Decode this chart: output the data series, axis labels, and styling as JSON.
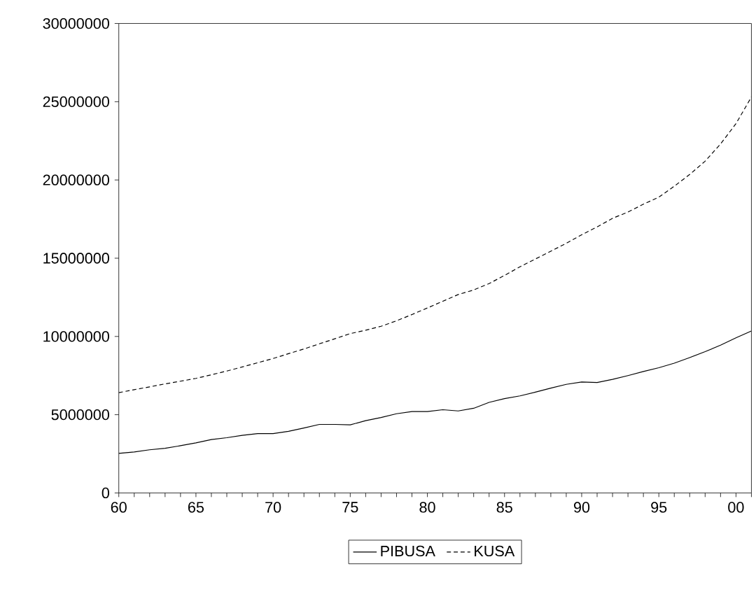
{
  "chart_data": {
    "type": "line",
    "x": [
      1960,
      1961,
      1962,
      1963,
      1964,
      1965,
      1966,
      1967,
      1968,
      1969,
      1970,
      1971,
      1972,
      1973,
      1974,
      1975,
      1976,
      1977,
      1978,
      1979,
      1980,
      1981,
      1982,
      1983,
      1984,
      1985,
      1986,
      1987,
      1988,
      1989,
      1990,
      1991,
      1992,
      1993,
      1994,
      1995,
      1996,
      1997,
      1998,
      1999,
      2000,
      2001
    ],
    "series": [
      {
        "name": "PIBUSA",
        "color": "#000000",
        "line_style": "solid",
        "values": [
          2530000,
          2620000,
          2760000,
          2850000,
          3020000,
          3200000,
          3410000,
          3530000,
          3680000,
          3790000,
          3790000,
          3940000,
          4150000,
          4380000,
          4380000,
          4350000,
          4620000,
          4820000,
          5060000,
          5200000,
          5200000,
          5320000,
          5240000,
          5410000,
          5790000,
          6030000,
          6200000,
          6440000,
          6700000,
          6940000,
          7090000,
          7060000,
          7260000,
          7500000,
          7760000,
          8000000,
          8290000,
          8650000,
          9030000,
          9440000,
          9910000,
          10350000
        ]
      },
      {
        "name": "KUSA",
        "color": "#000000",
        "line_style": "dashed",
        "values": [
          6410000,
          6600000,
          6780000,
          6970000,
          7140000,
          7320000,
          7550000,
          7790000,
          8050000,
          8320000,
          8590000,
          8900000,
          9200000,
          9530000,
          9850000,
          10180000,
          10400000,
          10650000,
          11000000,
          11400000,
          11820000,
          12250000,
          12680000,
          12970000,
          13380000,
          13900000,
          14450000,
          14950000,
          15450000,
          15950000,
          16500000,
          17000000,
          17550000,
          17950000,
          18450000,
          18900000,
          19600000,
          20350000,
          21200000,
          22300000,
          23600000,
          25300000
        ]
      }
    ],
    "xlim": [
      1960,
      2001
    ],
    "xticks": [
      {
        "value": 1960,
        "label": "60"
      },
      {
        "value": 1961,
        "label": null
      },
      {
        "value": 1962,
        "label": null
      },
      {
        "value": 1963,
        "label": null
      },
      {
        "value": 1964,
        "label": null
      },
      {
        "value": 1965,
        "label": "65"
      },
      {
        "value": 1966,
        "label": null
      },
      {
        "value": 1967,
        "label": null
      },
      {
        "value": 1968,
        "label": null
      },
      {
        "value": 1969,
        "label": null
      },
      {
        "value": 1970,
        "label": "70"
      },
      {
        "value": 1971,
        "label": null
      },
      {
        "value": 1972,
        "label": null
      },
      {
        "value": 1973,
        "label": null
      },
      {
        "value": 1974,
        "label": null
      },
      {
        "value": 1975,
        "label": "75"
      },
      {
        "value": 1976,
        "label": null
      },
      {
        "value": 1977,
        "label": null
      },
      {
        "value": 1978,
        "label": null
      },
      {
        "value": 1979,
        "label": null
      },
      {
        "value": 1980,
        "label": "80"
      },
      {
        "value": 1981,
        "label": null
      },
      {
        "value": 1982,
        "label": null
      },
      {
        "value": 1983,
        "label": null
      },
      {
        "value": 1984,
        "label": null
      },
      {
        "value": 1985,
        "label": "85"
      },
      {
        "value": 1986,
        "label": null
      },
      {
        "value": 1987,
        "label": null
      },
      {
        "value": 1988,
        "label": null
      },
      {
        "value": 1989,
        "label": null
      },
      {
        "value": 1990,
        "label": "90"
      },
      {
        "value": 1991,
        "label": null
      },
      {
        "value": 1992,
        "label": null
      },
      {
        "value": 1993,
        "label": null
      },
      {
        "value": 1994,
        "label": null
      },
      {
        "value": 1995,
        "label": "95"
      },
      {
        "value": 1996,
        "label": null
      },
      {
        "value": 1997,
        "label": null
      },
      {
        "value": 1998,
        "label": null
      },
      {
        "value": 1999,
        "label": null
      },
      {
        "value": 2000,
        "label": "00"
      },
      {
        "value": 2001,
        "label": null
      }
    ],
    "ylim": [
      0,
      30000000
    ],
    "yticks": [
      0,
      5000000,
      10000000,
      15000000,
      20000000,
      25000000,
      30000000
    ],
    "grid": false,
    "legend": "bottom",
    "marker": "none"
  }
}
